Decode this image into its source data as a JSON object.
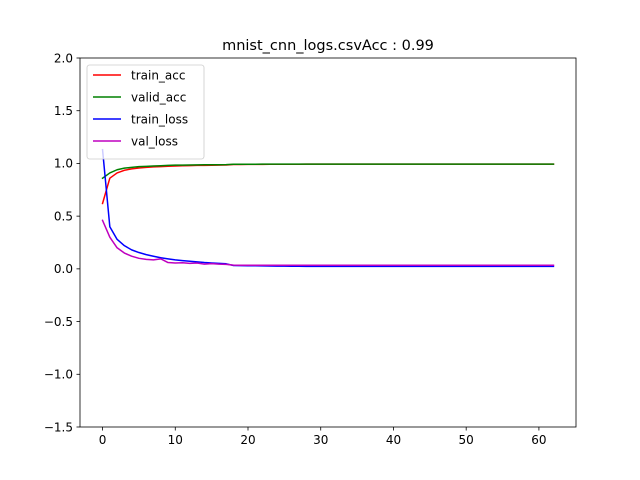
{
  "chart_data": {
    "type": "line",
    "title": "mnist_cnn_logs.csvAcc : 0.99",
    "xlabel": "",
    "ylabel": "",
    "xlim": [
      -3.1,
      65.1
    ],
    "ylim": [
      -1.5,
      2.0
    ],
    "xticks": [
      0,
      10,
      20,
      30,
      40,
      50,
      60
    ],
    "yticks": [
      -1.5,
      -1.0,
      -0.5,
      0.0,
      0.5,
      1.0,
      1.5,
      2.0
    ],
    "xtick_labels": [
      "0",
      "10",
      "20",
      "30",
      "40",
      "50",
      "60"
    ],
    "ytick_labels": [
      "−1.5",
      "−1.0",
      "−0.5",
      "0.0",
      "0.5",
      "1.0",
      "1.5",
      "2.0"
    ],
    "grid": false,
    "legend_position": "upper-left",
    "x": [
      0,
      1,
      2,
      3,
      4,
      5,
      6,
      7,
      8,
      9,
      10,
      11,
      12,
      13,
      14,
      15,
      16,
      17,
      18,
      19,
      20,
      21,
      22,
      23,
      24,
      25,
      26,
      27,
      28,
      29,
      30,
      31,
      32,
      33,
      34,
      35,
      36,
      37,
      38,
      39,
      40,
      41,
      42,
      43,
      44,
      45,
      46,
      47,
      48,
      49,
      50,
      51,
      52,
      53,
      54,
      55,
      56,
      57,
      58,
      59,
      60,
      61,
      62
    ],
    "series": [
      {
        "name": "train_acc",
        "color": "#ff0000",
        "values": [
          0.62,
          0.86,
          0.91,
          0.935,
          0.948,
          0.957,
          0.963,
          0.967,
          0.97,
          0.973,
          0.976,
          0.978,
          0.979,
          0.981,
          0.982,
          0.983,
          0.984,
          0.985,
          0.99,
          0.99,
          0.991,
          0.991,
          0.991,
          0.992,
          0.992,
          0.992,
          0.992,
          0.992,
          0.993,
          0.993,
          0.993,
          0.993,
          0.993,
          0.993,
          0.993,
          0.993,
          0.993,
          0.993,
          0.993,
          0.993,
          0.993,
          0.993,
          0.993,
          0.993,
          0.993,
          0.993,
          0.993,
          0.993,
          0.993,
          0.993,
          0.993,
          0.993,
          0.993,
          0.993,
          0.993,
          0.993,
          0.993,
          0.993,
          0.993,
          0.993,
          0.993,
          0.993,
          0.993
        ]
      },
      {
        "name": "valid_acc",
        "color": "#008000",
        "values": [
          0.86,
          0.91,
          0.94,
          0.955,
          0.963,
          0.97,
          0.972,
          0.975,
          0.978,
          0.982,
          0.984,
          0.984,
          0.985,
          0.986,
          0.987,
          0.988,
          0.988,
          0.989,
          0.992,
          0.992,
          0.992,
          0.992,
          0.993,
          0.993,
          0.993,
          0.993,
          0.993,
          0.993,
          0.993,
          0.993,
          0.993,
          0.993,
          0.993,
          0.993,
          0.993,
          0.993,
          0.993,
          0.993,
          0.993,
          0.993,
          0.993,
          0.993,
          0.993,
          0.993,
          0.993,
          0.993,
          0.993,
          0.993,
          0.993,
          0.993,
          0.993,
          0.993,
          0.993,
          0.993,
          0.993,
          0.993,
          0.993,
          0.993,
          0.993,
          0.993,
          0.993,
          0.993,
          0.993
        ]
      },
      {
        "name": "train_loss",
        "color": "#0000ff",
        "values": [
          1.13,
          0.4,
          0.28,
          0.22,
          0.18,
          0.155,
          0.135,
          0.12,
          0.105,
          0.095,
          0.085,
          0.078,
          0.072,
          0.066,
          0.06,
          0.056,
          0.052,
          0.048,
          0.032,
          0.031,
          0.03,
          0.029,
          0.028,
          0.027,
          0.026,
          0.026,
          0.025,
          0.025,
          0.024,
          0.024,
          0.023,
          0.023,
          0.023,
          0.023,
          0.023,
          0.023,
          0.023,
          0.023,
          0.023,
          0.023,
          0.023,
          0.023,
          0.023,
          0.023,
          0.023,
          0.023,
          0.023,
          0.023,
          0.023,
          0.023,
          0.023,
          0.023,
          0.023,
          0.023,
          0.023,
          0.023,
          0.023,
          0.023,
          0.023,
          0.023,
          0.023,
          0.023,
          0.023
        ]
      },
      {
        "name": "val_loss",
        "color": "#bf00bf",
        "values": [
          0.46,
          0.3,
          0.2,
          0.15,
          0.12,
          0.1,
          0.09,
          0.085,
          0.095,
          0.06,
          0.055,
          0.058,
          0.052,
          0.055,
          0.045,
          0.05,
          0.045,
          0.042,
          0.035,
          0.034,
          0.034,
          0.034,
          0.034,
          0.034,
          0.034,
          0.034,
          0.034,
          0.034,
          0.034,
          0.034,
          0.034,
          0.034,
          0.034,
          0.034,
          0.034,
          0.034,
          0.034,
          0.034,
          0.034,
          0.034,
          0.034,
          0.034,
          0.034,
          0.034,
          0.034,
          0.034,
          0.034,
          0.034,
          0.034,
          0.034,
          0.034,
          0.034,
          0.034,
          0.034,
          0.034,
          0.034,
          0.034,
          0.034,
          0.034,
          0.034,
          0.034,
          0.034,
          0.034
        ]
      }
    ]
  }
}
